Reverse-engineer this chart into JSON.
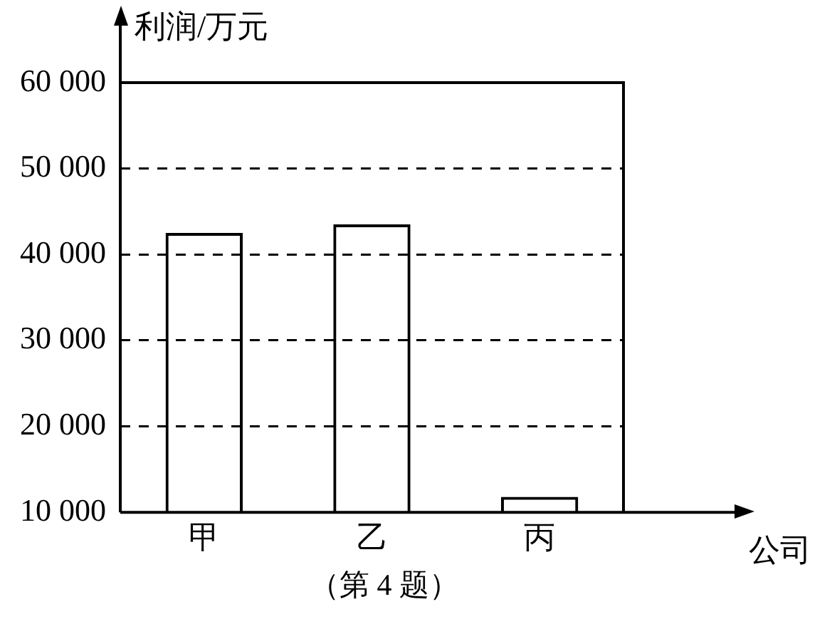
{
  "chart_data": {
    "type": "bar",
    "xlabel": "公司",
    "ylabel": "利润/万元",
    "categories": [
      "甲",
      "乙",
      "丙"
    ],
    "values": [
      42500,
      43500,
      11800
    ],
    "color": "#000000",
    "ylim": [
      10000,
      60000
    ],
    "yticks": [
      {
        "value": 10000,
        "label": "10 000"
      },
      {
        "value": 20000,
        "label": "20 000"
      },
      {
        "value": 30000,
        "label": "30 000"
      },
      {
        "value": 40000,
        "label": "40 000"
      },
      {
        "value": 50000,
        "label": "50 000"
      },
      {
        "value": 60000,
        "label": "60 000"
      }
    ],
    "grid": "y",
    "line_style": "dashed",
    "annotations": [
      "（第 4 题）"
    ]
  }
}
